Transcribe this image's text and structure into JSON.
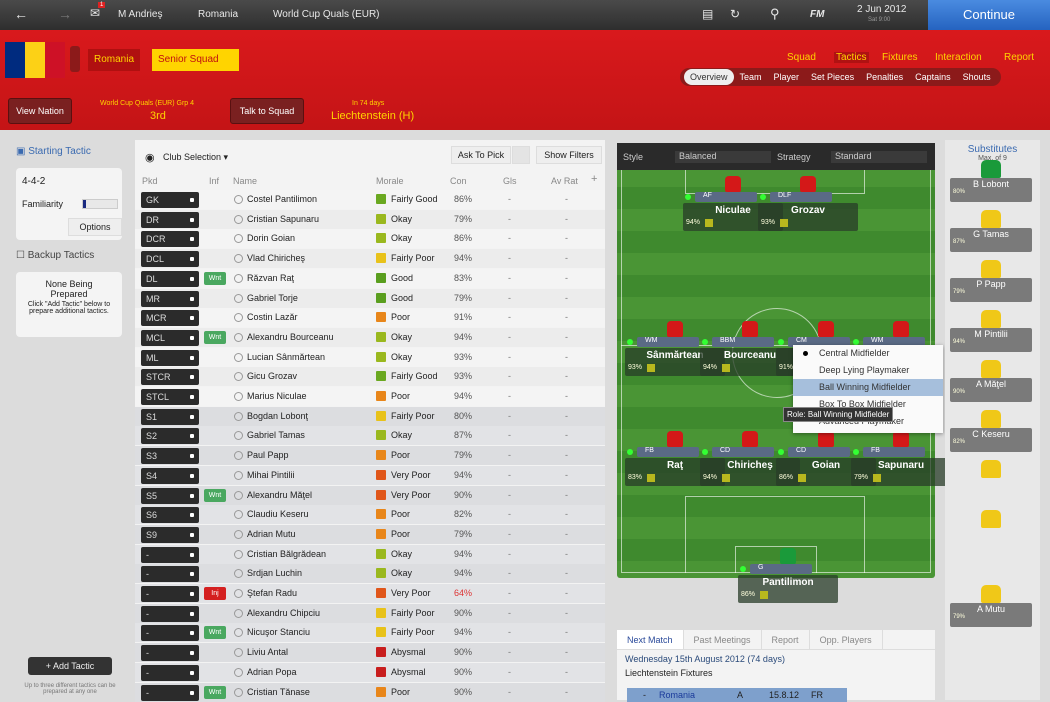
{
  "topbar": {
    "breadcrumb": [
      "M Andrieş",
      "Romania",
      "World Cup Quals (EUR)"
    ],
    "date": "2 Jun 2012",
    "day": "Sat 9:00",
    "continue": "Continue",
    "fm": "FM",
    "notification_count": "1"
  },
  "header": {
    "nation": "Romania",
    "squad": "Senior Squad",
    "nav": [
      "Squad",
      "Tactics",
      "Fixtures",
      "Interaction",
      "Report"
    ],
    "active_nav": "Tactics",
    "subtabs": [
      "Overview",
      "Team",
      "Player",
      "Set Pieces",
      "Penalties",
      "Captains",
      "Shouts"
    ],
    "active_subtab": "Overview",
    "view_nation": "View Nation",
    "competition": "World Cup Quals (EUR) Grp 4",
    "position": "3rd",
    "talk": "Talk to Squad",
    "next_in": "In 74 days",
    "next_opponent": "Liechtenstein (H)",
    "flag_colors": [
      "#002b7f",
      "#fcd116",
      "#ce1126"
    ]
  },
  "left": {
    "starting_title": "Starting Tactic",
    "formation": "4-4-2",
    "familiarity_label": "Familiarity",
    "familiarity": 0.1,
    "options": "Options",
    "backup_title": "Backup Tactics",
    "none_title": "None Being Prepared",
    "none_text": "Click \"Add Tactic\" below to prepare additional tactics.",
    "add_tactic": "Add Tactic",
    "footer": "Up to three different tactics can be prepared at any one"
  },
  "table": {
    "view": "Club Selection",
    "ask": "Ask To Pick",
    "filters": "Show Filters",
    "headers": [
      "Pkd",
      "Inf",
      "Name",
      "Morale",
      "Con",
      "Gls",
      "Av Rat"
    ],
    "rows": [
      [
        "GK",
        "",
        "Costel Pantilimon",
        "Fairly Good",
        "86%",
        "-",
        "-"
      ],
      [
        "DR",
        "",
        "Cristian Sapunaru",
        "Okay",
        "79%",
        "-",
        "-"
      ],
      [
        "DCR",
        "",
        "Dorin Goian",
        "Okay",
        "86%",
        "-",
        "-"
      ],
      [
        "DCL",
        "",
        "Vlad Chiricheş",
        "Fairly Poor",
        "94%",
        "-",
        "-"
      ],
      [
        "DL",
        "Wnt",
        "Răzvan Raţ",
        "Good",
        "83%",
        "-",
        "-"
      ],
      [
        "MR",
        "",
        "Gabriel Torje",
        "Good",
        "79%",
        "-",
        "-"
      ],
      [
        "MCR",
        "",
        "Costin Lazăr",
        "Poor",
        "91%",
        "-",
        "-"
      ],
      [
        "MCL",
        "Wnt",
        "Alexandru Bourceanu",
        "Okay",
        "94%",
        "-",
        "-"
      ],
      [
        "ML",
        "",
        "Lucian Sânmărtean",
        "Okay",
        "93%",
        "-",
        "-"
      ],
      [
        "STCR",
        "",
        "Gicu Grozav",
        "Fairly Good",
        "93%",
        "-",
        "-"
      ],
      [
        "STCL",
        "",
        "Marius Niculae",
        "Poor",
        "94%",
        "-",
        "-"
      ],
      [
        "S1",
        "",
        "Bogdan Lobonţ",
        "Fairly Poor",
        "80%",
        "-",
        "-"
      ],
      [
        "S2",
        "",
        "Gabriel Tamas",
        "Okay",
        "87%",
        "-",
        "-"
      ],
      [
        "S3",
        "",
        "Paul Papp",
        "Poor",
        "79%",
        "-",
        "-"
      ],
      [
        "S4",
        "",
        "Mihai Pintilii",
        "Very Poor",
        "94%",
        "-",
        "-"
      ],
      [
        "S5",
        "Wnt",
        "Alexandru Măţel",
        "Very Poor",
        "90%",
        "-",
        "-"
      ],
      [
        "S6",
        "",
        "Claudiu Keseru",
        "Poor",
        "82%",
        "-",
        "-"
      ],
      [
        "S9",
        "",
        "Adrian Mutu",
        "Poor",
        "79%",
        "-",
        "-"
      ],
      [
        "-",
        "",
        "Cristian Bălgrădean",
        "Okay",
        "94%",
        "-",
        "-"
      ],
      [
        "-",
        "",
        "Srdjan Luchin",
        "Okay",
        "94%",
        "-",
        "-"
      ],
      [
        "-",
        "Inj",
        "Ştefan Radu",
        "Very Poor",
        "64%",
        "-",
        "-"
      ],
      [
        "-",
        "",
        "Alexandru Chipciu",
        "Fairly Poor",
        "90%",
        "-",
        "-"
      ],
      [
        "-",
        "Wnt",
        "Nicuşor Stanciu",
        "Fairly Poor",
        "94%",
        "-",
        "-"
      ],
      [
        "-",
        "",
        "Liviu Antal",
        "Abysmal",
        "90%",
        "-",
        "-"
      ],
      [
        "-",
        "",
        "Adrian Popa",
        "Abysmal",
        "90%",
        "-",
        "-"
      ],
      [
        "-",
        "Wnt",
        "Cristian Tănase",
        "Poor",
        "90%",
        "-",
        "-"
      ]
    ],
    "morale_colors": {
      "Good": "#5a9e1e",
      "Fairly Good": "#6aa820",
      "Okay": "#9ab81e",
      "Fairly Poor": "#e8c21a",
      "Poor": "#e8861a",
      "Very Poor": "#e0561a",
      "Abysmal": "#c81e1e"
    },
    "inf_colors": {
      "Wnt": "#4aa860",
      "Inj": "#d42020"
    }
  },
  "pitch": {
    "style_label": "Style",
    "style": "Balanced",
    "strategy_label": "Strategy",
    "strategy": "Standard",
    "players": [
      {
        "role": "AF",
        "name": "Niculae",
        "con": "94%"
      },
      {
        "role": "DLF",
        "name": "Grozav",
        "con": "93%"
      },
      {
        "role": "WM",
        "name": "Sânmărtean",
        "con": "93%"
      },
      {
        "role": "BBM",
        "name": "Bourceanu",
        "con": "94%"
      },
      {
        "role": "CM",
        "name": "",
        "con": "91%"
      },
      {
        "role": "WM",
        "name": "",
        "con": ""
      },
      {
        "role": "FB",
        "name": "Raţ",
        "con": "83%"
      },
      {
        "role": "CD",
        "name": "Chiricheş",
        "con": "94%"
      },
      {
        "role": "CD",
        "name": "Goian",
        "con": "86%"
      },
      {
        "role": "FB",
        "name": "Sapunaru",
        "con": "79%"
      },
      {
        "role": "G",
        "name": "Pantilimon",
        "con": "86%"
      }
    ],
    "role_menu": [
      "Central Midfielder",
      "Deep Lying Playmaker",
      "Ball Winning Midfielder",
      "Box To Box Midfielder",
      "Advanced Playmaker"
    ],
    "role_selected": "Central Midfielder",
    "role_highlight": "Ball Winning Midfielder",
    "tooltip": "Role: Ball Winning Midfielder"
  },
  "subs": {
    "title": "Substitutes",
    "max": "Max. of 9",
    "players": [
      {
        "name": "B Lobont",
        "con": "80%"
      },
      {
        "name": "G Tamas",
        "con": "87%"
      },
      {
        "name": "P Papp",
        "con": "79%"
      },
      {
        "name": "M Pintilii",
        "con": "94%"
      },
      {
        "name": "A Măţel",
        "con": "90%"
      },
      {
        "name": "C Keseru",
        "con": "82%"
      },
      {
        "name": "",
        "con": ""
      },
      {
        "name": "",
        "con": ""
      },
      {
        "name": "A Mutu",
        "con": "79%"
      }
    ]
  },
  "next_match": {
    "tabs": [
      "Next Match",
      "Past Meetings",
      "Report",
      "Opp. Players"
    ],
    "date": "Wednesday 15th August 2012 (74 days)",
    "fixtures_title": "Liechtenstein Fixtures",
    "fixture": [
      "-",
      "Romania",
      "A",
      "15.8.12",
      "FR"
    ]
  }
}
